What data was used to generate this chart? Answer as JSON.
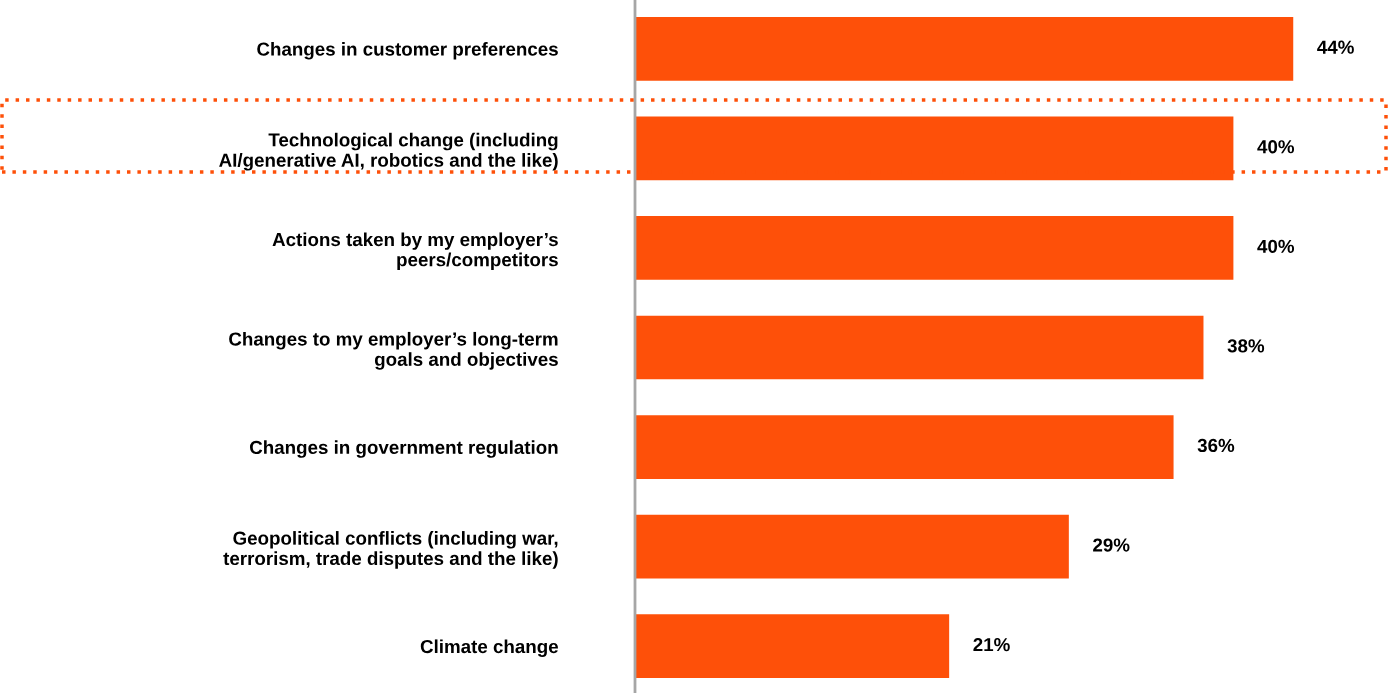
{
  "chart_data": {
    "type": "bar",
    "orientation": "horizontal",
    "categories": [
      "Changes in customer preferences",
      "Technological change (including\nAI/generative AI, robotics and the like)",
      "Actions taken by my employer’s\npeers/competitors",
      "Changes to my employer’s long-term\ngoals and objectives",
      "Changes in government regulation",
      "Geopolitical conflicts (including war,\nterrorism, trade disputes and the like)",
      "Climate change"
    ],
    "values": [
      44,
      40,
      40,
      38,
      36,
      29,
      21
    ],
    "value_labels": [
      "44%",
      "40%",
      "40%",
      "38%",
      "36%",
      "29%",
      "21%"
    ],
    "color": "#fe5009",
    "tick_labels": "y"
  }
}
